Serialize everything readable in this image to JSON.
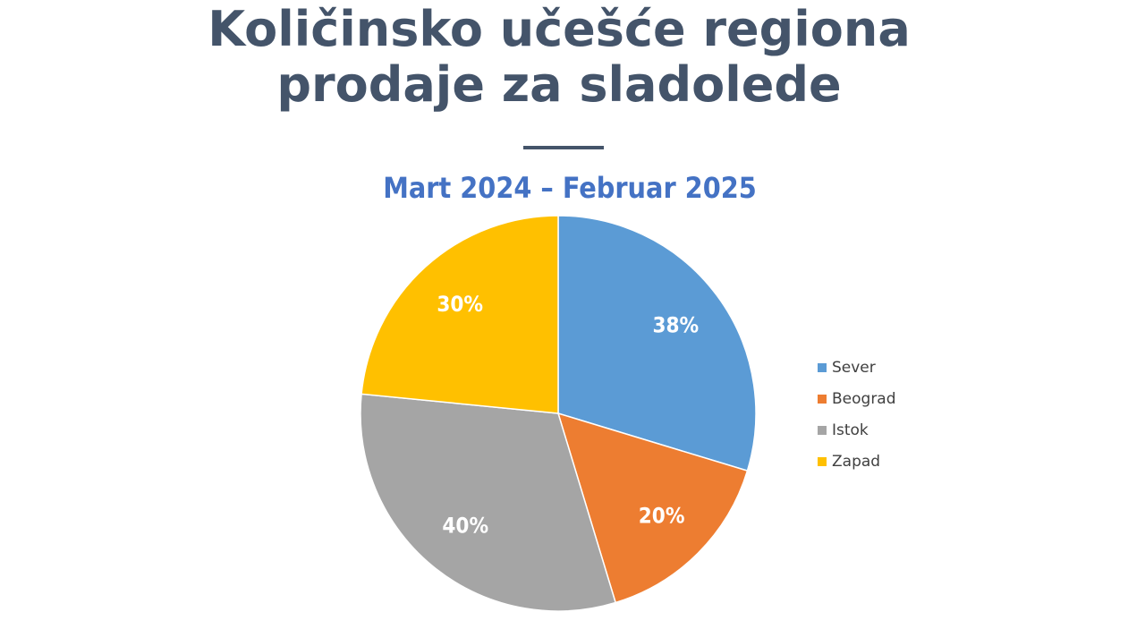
{
  "chart_data": {
    "type": "pie",
    "title": "Količinsko učešće regiona prodaje za sladolede",
    "subtitle": "Mart 2024 – Februar 2025",
    "categories": [
      "Sever",
      "Beograd",
      "Istok",
      "Zapad"
    ],
    "values": [
      38,
      20,
      40,
      30
    ],
    "value_labels": [
      "38%",
      "20%",
      "40%",
      "30%"
    ],
    "colors": [
      "#5b9bd5",
      "#ed7d31",
      "#a5a5a5",
      "#ffc000"
    ],
    "legend": "right"
  }
}
